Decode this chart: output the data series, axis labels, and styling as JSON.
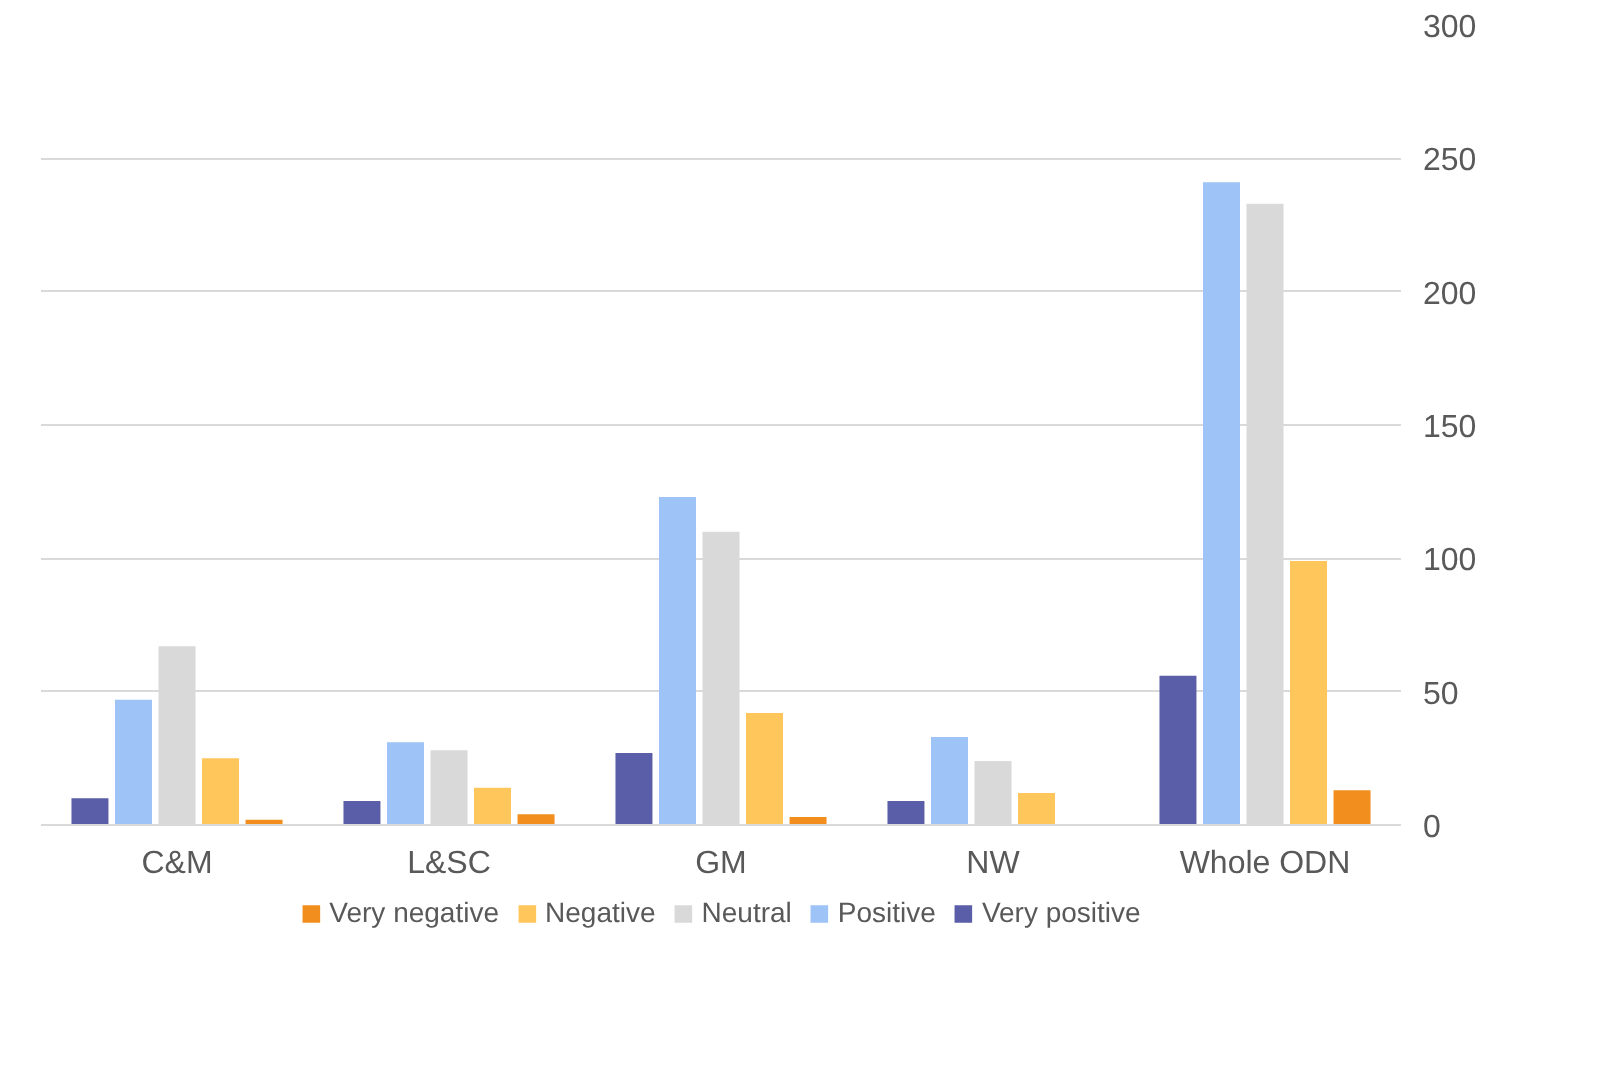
{
  "chart_data": {
    "type": "bar",
    "categories": [
      "C&M",
      "L&SC",
      "GM",
      "NW",
      "Whole ODN"
    ],
    "series": [
      {
        "name": "Very negative",
        "color": "#f28e1e",
        "values": [
          2,
          4,
          3,
          0,
          13
        ]
      },
      {
        "name": "Negative",
        "color": "#ffc65c",
        "values": [
          25,
          14,
          42,
          12,
          99
        ]
      },
      {
        "name": "Neutral",
        "color": "#d9d9d9",
        "values": [
          67,
          28,
          110,
          24,
          233
        ]
      },
      {
        "name": "Positive",
        "color": "#9dc3f7",
        "values": [
          47,
          31,
          123,
          33,
          241
        ]
      },
      {
        "name": "Very positive",
        "color": "#5a5ea8",
        "values": [
          10,
          9,
          27,
          9,
          56
        ]
      }
    ],
    "ylim": [
      0,
      300
    ],
    "yticks": [
      0,
      50,
      100,
      150,
      200,
      250,
      300
    ],
    "grid": "y",
    "legend": "bottom"
  }
}
